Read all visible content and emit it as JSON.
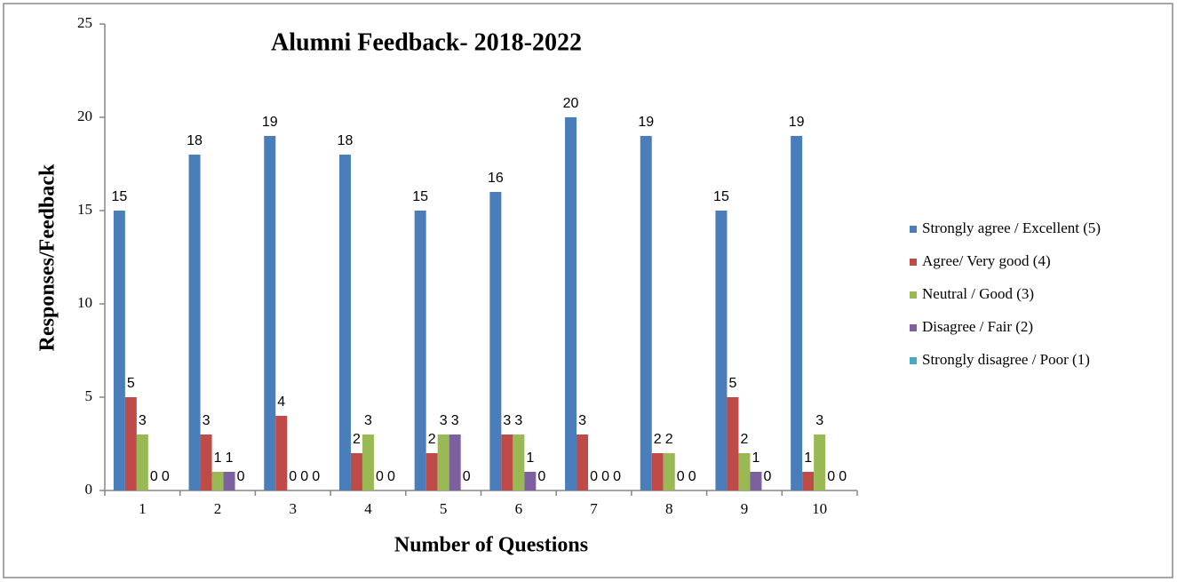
{
  "chart_data": {
    "type": "bar",
    "title": "Alumni Feedback- 2018-2022",
    "x_label": "Number of Questions",
    "y_label": "Responses/Feedback",
    "categories": [
      "1",
      "2",
      "3",
      "4",
      "5",
      "6",
      "7",
      "8",
      "9",
      "10"
    ],
    "series": [
      {
        "name": "Strongly agree / Excellent (5)",
        "color": "#4a7ebb",
        "values": [
          15,
          18,
          19,
          18,
          15,
          16,
          20,
          19,
          15,
          19
        ]
      },
      {
        "name": "Agree/ Very good (4)",
        "color": "#be4b48",
        "values": [
          5,
          3,
          4,
          2,
          2,
          3,
          3,
          2,
          5,
          1
        ]
      },
      {
        "name": "Neutral / Good (3)",
        "color": "#98b954",
        "values": [
          3,
          1,
          0,
          3,
          3,
          3,
          0,
          2,
          2,
          3
        ]
      },
      {
        "name": "Disagree / Fair (2)",
        "color": "#7d60a0",
        "values": [
          0,
          1,
          0,
          0,
          3,
          1,
          0,
          0,
          1,
          0
        ]
      },
      {
        "name": "Strongly disagree / Poor (1)",
        "color": "#46aac5",
        "values": [
          0,
          0,
          0,
          0,
          0,
          0,
          0,
          0,
          0,
          0
        ]
      }
    ],
    "ylim": [
      0,
      25
    ],
    "yticks": [
      0,
      5,
      10,
      15,
      20,
      25
    ],
    "legend": "right",
    "data_labels": true
  }
}
